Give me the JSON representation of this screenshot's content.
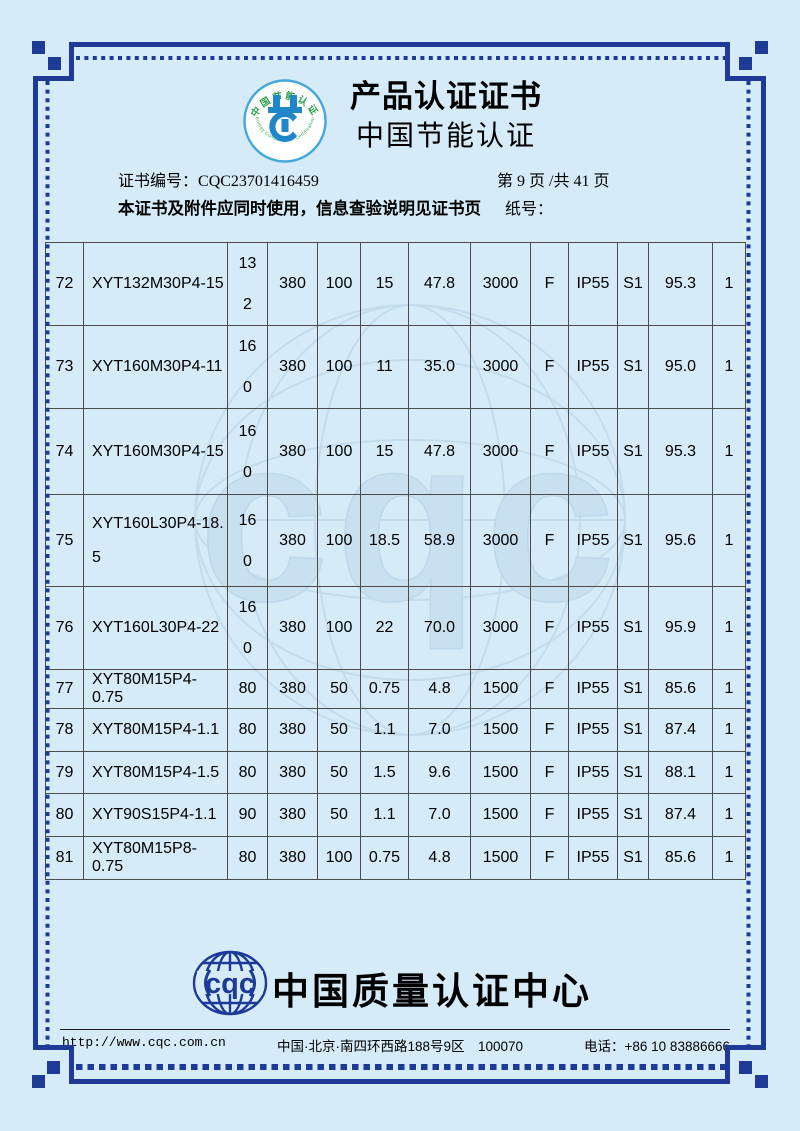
{
  "page": {
    "bg_color": "#d5ebf8",
    "border_color": "#1c3a96",
    "grid_color": "#4c4c4c"
  },
  "header": {
    "title": "产品认证证书",
    "subtitle": "中国节能认证",
    "cert_no_label": "证书编号：",
    "cert_no": "CQC23701416459",
    "page_info": "第 9 页 /共 41 页",
    "notice": "本证书及附件应同时使用，信息查验说明见证书页",
    "paper_no_label": "纸号：",
    "energy_logo": {
      "top_text": "中国节能认证",
      "bottom_text": "Energy Conservation Certification",
      "ring_color": "#45a7da",
      "glyph_color": "#1f86c9",
      "text_color": "#2ba24c"
    }
  },
  "watermark": {
    "text": "cqc"
  },
  "table": {
    "rows": [
      {
        "no": "72",
        "model": [
          "XYT132M30P4-15"
        ],
        "frame": [
          "13",
          "2"
        ],
        "voltage": "380",
        "freq": "100",
        "power": "15",
        "current": "47.8",
        "speed": "3000",
        "ins": "F",
        "ip": "IP55",
        "duty": "S1",
        "eff": "95.3",
        "qty": "1"
      },
      {
        "no": "73",
        "model": [
          "XYT160M30P4-11"
        ],
        "frame": [
          "16",
          "0"
        ],
        "voltage": "380",
        "freq": "100",
        "power": "11",
        "current": "35.0",
        "speed": "3000",
        "ins": "F",
        "ip": "IP55",
        "duty": "S1",
        "eff": "95.0",
        "qty": "1"
      },
      {
        "no": "74",
        "model": [
          "XYT160M30P4-15"
        ],
        "frame": [
          "16",
          "0"
        ],
        "voltage": "380",
        "freq": "100",
        "power": "15",
        "current": "47.8",
        "speed": "3000",
        "ins": "F",
        "ip": "IP55",
        "duty": "S1",
        "eff": "95.3",
        "qty": "1"
      },
      {
        "no": "75",
        "model": [
          "XYT160L30P4-18.",
          "5"
        ],
        "frame": [
          "16",
          "0"
        ],
        "voltage": "380",
        "freq": "100",
        "power": "18.5",
        "current": "58.9",
        "speed": "3000",
        "ins": "F",
        "ip": "IP55",
        "duty": "S1",
        "eff": "95.6",
        "qty": "1"
      },
      {
        "no": "76",
        "model": [
          "XYT160L30P4-22"
        ],
        "frame": [
          "16",
          "0"
        ],
        "voltage": "380",
        "freq": "100",
        "power": "22",
        "current": "70.0",
        "speed": "3000",
        "ins": "F",
        "ip": "IP55",
        "duty": "S1",
        "eff": "95.9",
        "qty": "1"
      },
      {
        "no": "77",
        "model": [
          "XYT80M15P4-0.75"
        ],
        "frame": [
          "80"
        ],
        "voltage": "380",
        "freq": "50",
        "power": "0.75",
        "current": "4.8",
        "speed": "1500",
        "ins": "F",
        "ip": "IP55",
        "duty": "S1",
        "eff": "85.6",
        "qty": "1"
      },
      {
        "no": "78",
        "model": [
          "XYT80M15P4-1.1"
        ],
        "frame": [
          "80"
        ],
        "voltage": "380",
        "freq": "50",
        "power": "1.1",
        "current": "7.0",
        "speed": "1500",
        "ins": "F",
        "ip": "IP55",
        "duty": "S1",
        "eff": "87.4",
        "qty": "1"
      },
      {
        "no": "79",
        "model": [
          "XYT80M15P4-1.5"
        ],
        "frame": [
          "80"
        ],
        "voltage": "380",
        "freq": "50",
        "power": "1.5",
        "current": "9.6",
        "speed": "1500",
        "ins": "F",
        "ip": "IP55",
        "duty": "S1",
        "eff": "88.1",
        "qty": "1"
      },
      {
        "no": "80",
        "model": [
          "XYT90S15P4-1.1"
        ],
        "frame": [
          "90"
        ],
        "voltage": "380",
        "freq": "50",
        "power": "1.1",
        "current": "7.0",
        "speed": "1500",
        "ins": "F",
        "ip": "IP55",
        "duty": "S1",
        "eff": "87.4",
        "qty": "1"
      },
      {
        "no": "81",
        "model": [
          "XYT80M15P8-0.75"
        ],
        "frame": [
          "80"
        ],
        "voltage": "380",
        "freq": "100",
        "power": "0.75",
        "current": "4.8",
        "speed": "1500",
        "ins": "F",
        "ip": "IP55",
        "duty": "S1",
        "eff": "85.6",
        "qty": "1"
      }
    ]
  },
  "footer": {
    "logo_text": "cqc",
    "org_name": "中国质量认证中心",
    "website": "http://www.cqc.com.cn",
    "address": "中国·北京·南四环西路188号9区　100070",
    "phone": "电话：+86 10 83886666"
  }
}
